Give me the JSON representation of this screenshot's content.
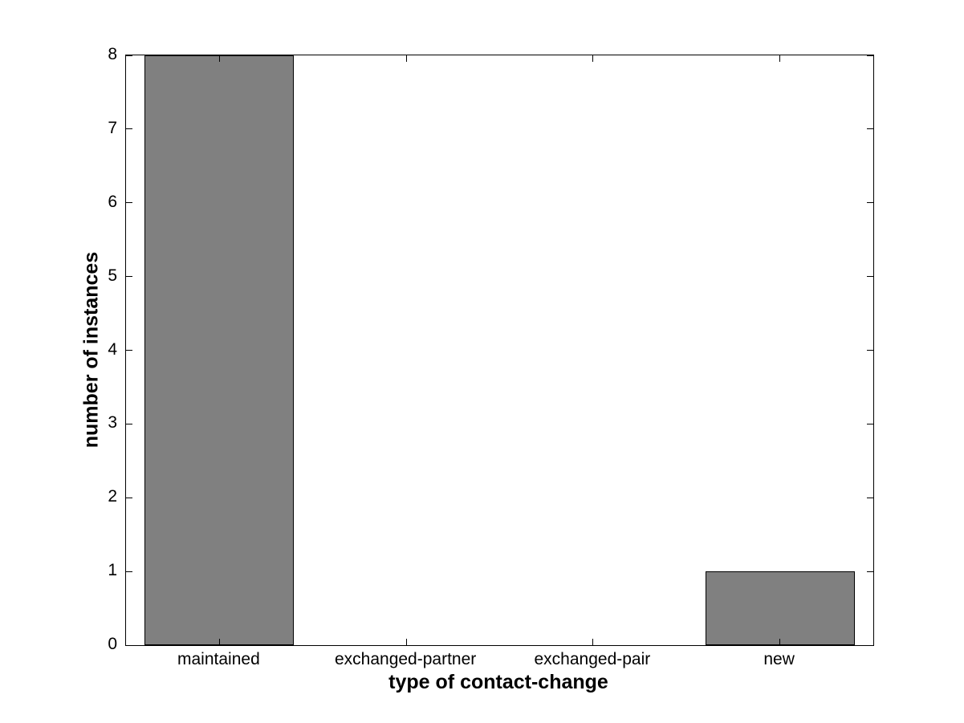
{
  "chart_data": {
    "type": "bar",
    "categories": [
      "maintained",
      "exchanged-partner",
      "exchanged-pair",
      "new"
    ],
    "values": [
      8,
      0,
      0,
      1
    ],
    "title": "",
    "xlabel": "type of contact-change",
    "ylabel": "number of instances",
    "ylim": [
      0,
      8
    ],
    "yticks": [
      0,
      1,
      2,
      3,
      4,
      5,
      6,
      7,
      8
    ],
    "bar_width_fraction": 0.8,
    "bar_color": "#808080",
    "bar_edge_color": "#000000",
    "axis_color": "#000000",
    "background_color": "#ffffff",
    "grid": false,
    "legend": null,
    "tick_direction": "in",
    "box": true
  }
}
